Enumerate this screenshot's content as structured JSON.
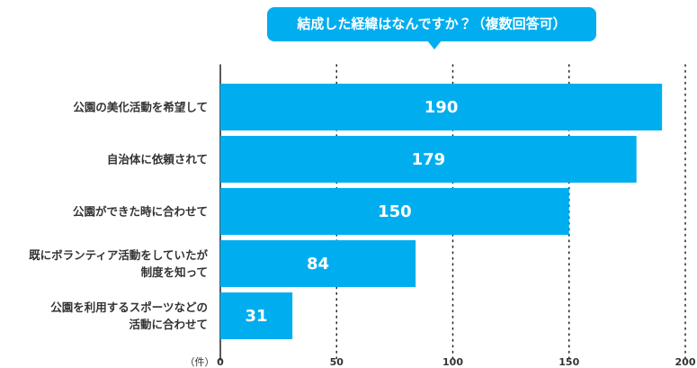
{
  "chart_data": {
    "type": "hbar",
    "title": "結成した経緯はなんですか？（複数回答可）",
    "unit_label": "（件）",
    "categories": [
      "公園の美化活動を希望して",
      "自治体に依頼されて",
      "公園ができた時に合わせて",
      "既にボランティア活動をしていたが\n制度を知って",
      "公園を利用するスポーツなどの\n活動に合わせて"
    ],
    "values": [
      190,
      179,
      150,
      84,
      31
    ],
    "color": "#00aeef",
    "xlim": [
      0,
      200
    ],
    "xticks": [
      0,
      50,
      100,
      150,
      200
    ],
    "grid": true
  }
}
